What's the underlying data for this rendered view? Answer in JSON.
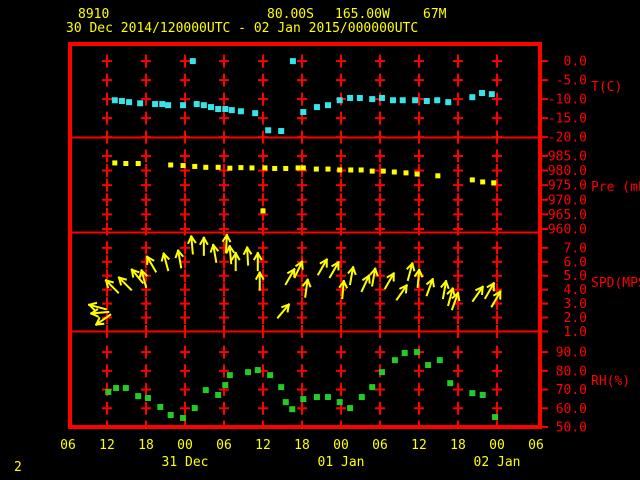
{
  "header": {
    "station_id": "8910",
    "latitude": "80.00S",
    "longitude": "165.00W",
    "elevation": "67M",
    "time_range": "30 Dec 2014/120000UTC - 02 Jan 2015/000000UTC"
  },
  "footer": {
    "page_label": "2"
  },
  "colors": {
    "background": "#000000",
    "grid": "#ff0000",
    "axis_text": "#ff0000",
    "header_text": "#ffff00",
    "temperature": "#35e3e8",
    "pressure": "#ffff00",
    "wind": "#ffff00",
    "humidity": "#22cc22"
  },
  "x_axis": {
    "hours_span": 72,
    "grid_interval_hours": 6,
    "hour_tick_labels": [
      "06",
      "12",
      "18",
      "00",
      "06",
      "12",
      "18",
      "00",
      "06",
      "12",
      "18",
      "00",
      "06"
    ],
    "date_labels": [
      {
        "label": "31 Dec",
        "hour": 18
      },
      {
        "label": "01 Jan",
        "hour": 42
      },
      {
        "label": "02 Jan",
        "hour": 66
      }
    ]
  },
  "chart_data": [
    {
      "type": "scatter",
      "name": "temperature",
      "ylabel": "T(C)",
      "yticks": [
        0.0,
        -5.0,
        -10.0,
        -15.0,
        -20.0
      ],
      "ylim": [
        -20.1,
        4.5
      ],
      "points": [
        [
          7.2,
          -10.3
        ],
        [
          8.3,
          -10.5
        ],
        [
          9.4,
          -10.8
        ],
        [
          11.1,
          -11.1
        ],
        [
          13.4,
          -11.3
        ],
        [
          14.5,
          -11.3
        ],
        [
          15.4,
          -11.6
        ],
        [
          17.7,
          -11.6
        ],
        [
          19.2,
          0.0
        ],
        [
          19.8,
          -11.3
        ],
        [
          20.9,
          -11.6
        ],
        [
          22.0,
          -12.1
        ],
        [
          23.1,
          -12.6
        ],
        [
          24.2,
          -12.6
        ],
        [
          25.2,
          -12.9
        ],
        [
          26.6,
          -13.2
        ],
        [
          28.8,
          -13.7
        ],
        [
          30.8,
          -18.2
        ],
        [
          32.8,
          -18.4
        ],
        [
          34.6,
          0.0
        ],
        [
          36.2,
          -13.4
        ],
        [
          38.3,
          -12.1
        ],
        [
          40.0,
          -11.6
        ],
        [
          41.8,
          -10.3
        ],
        [
          43.4,
          -9.7
        ],
        [
          44.9,
          -9.7
        ],
        [
          46.8,
          -10.0
        ],
        [
          48.3,
          -9.7
        ],
        [
          50.0,
          -10.3
        ],
        [
          51.5,
          -10.3
        ],
        [
          53.4,
          -10.3
        ],
        [
          55.2,
          -10.5
        ],
        [
          56.8,
          -10.3
        ],
        [
          58.5,
          -10.8
        ],
        [
          62.2,
          -9.5
        ],
        [
          63.7,
          -8.4
        ],
        [
          65.2,
          -8.7
        ]
      ]
    },
    {
      "type": "scatter",
      "name": "pressure",
      "ylabel": "Pre (mb)",
      "yticks": [
        985.0,
        980.0,
        975.0,
        970.0,
        965.0,
        960.0
      ],
      "ylim": [
        958.8,
        991.3
      ],
      "points": [
        [
          7.2,
          982.6
        ],
        [
          8.9,
          982.4
        ],
        [
          10.8,
          982.4
        ],
        [
          15.8,
          981.9
        ],
        [
          17.7,
          981.7
        ],
        [
          19.5,
          981.4
        ],
        [
          21.2,
          981.1
        ],
        [
          23.1,
          981.1
        ],
        [
          24.9,
          980.8
        ],
        [
          26.6,
          981.0
        ],
        [
          28.3,
          980.9
        ],
        [
          30.0,
          966.2
        ],
        [
          30.3,
          980.9
        ],
        [
          31.8,
          980.7
        ],
        [
          33.5,
          980.7
        ],
        [
          35.4,
          980.9
        ],
        [
          36.2,
          980.9
        ],
        [
          38.2,
          980.5
        ],
        [
          40.0,
          980.5
        ],
        [
          41.8,
          980.2
        ],
        [
          43.5,
          980.2
        ],
        [
          45.1,
          980.2
        ],
        [
          46.8,
          979.8
        ],
        [
          48.5,
          979.8
        ],
        [
          50.2,
          979.5
        ],
        [
          52.0,
          979.2
        ],
        [
          53.7,
          978.8
        ],
        [
          56.9,
          978.2
        ],
        [
          62.2,
          976.8
        ],
        [
          63.8,
          976.1
        ],
        [
          65.5,
          975.8
        ]
      ]
    },
    {
      "type": "wind-arrows",
      "name": "wind_speed",
      "ylabel": "SPD(MPS)",
      "yticks": [
        7.0,
        6.0,
        5.0,
        4.0,
        3.0,
        2.0,
        1.0
      ],
      "ylim": [
        1.0,
        8.1
      ],
      "points": [
        [
          5.8,
          2.6,
          -75
        ],
        [
          6.2,
          2.4,
          -95
        ],
        [
          6.5,
          2.2,
          -125
        ],
        [
          7.7,
          3.8,
          -45
        ],
        [
          9.7,
          4.0,
          -45
        ],
        [
          11.5,
          4.5,
          -40
        ],
        [
          12.0,
          4.2,
          -15
        ],
        [
          13.5,
          5.3,
          -30
        ],
        [
          15.4,
          5.4,
          -15
        ],
        [
          17.4,
          5.6,
          -10
        ],
        [
          19.2,
          6.6,
          -5
        ],
        [
          20.9,
          6.5,
          0
        ],
        [
          22.8,
          6.0,
          -10
        ],
        [
          24.3,
          6.7,
          3
        ],
        [
          25.1,
          5.9,
          -5
        ],
        [
          25.8,
          5.4,
          0
        ],
        [
          27.7,
          5.8,
          -3
        ],
        [
          29.2,
          5.4,
          0
        ],
        [
          29.5,
          4.0,
          0
        ],
        [
          32.3,
          2.0,
          40
        ],
        [
          33.5,
          4.4,
          30
        ],
        [
          34.9,
          4.9,
          25
        ],
        [
          36.5,
          3.5,
          8
        ],
        [
          38.5,
          5.1,
          30
        ],
        [
          40.3,
          4.9,
          30
        ],
        [
          42.2,
          3.4,
          5
        ],
        [
          43.4,
          4.4,
          10
        ],
        [
          45.2,
          3.9,
          25
        ],
        [
          46.8,
          4.3,
          10
        ],
        [
          48.8,
          4.1,
          30
        ],
        [
          50.6,
          3.3,
          35
        ],
        [
          52.3,
          4.7,
          15
        ],
        [
          53.8,
          4.2,
          5
        ],
        [
          55.2,
          3.6,
          20
        ],
        [
          57.7,
          3.4,
          10
        ],
        [
          58.5,
          2.9,
          15
        ],
        [
          59.1,
          2.6,
          20
        ],
        [
          62.3,
          3.2,
          35
        ],
        [
          64.2,
          3.4,
          30
        ],
        [
          65.2,
          2.8,
          30
        ]
      ]
    },
    {
      "type": "scatter",
      "name": "relative_humidity",
      "ylabel": "RH(%)",
      "yticks": [
        90.0,
        80.0,
        70.0,
        60.0,
        50.0
      ],
      "ylim": [
        50.0,
        101.0
      ],
      "points": [
        [
          6.2,
          68.7
        ],
        [
          7.4,
          70.8
        ],
        [
          8.9,
          70.8
        ],
        [
          10.8,
          66.5
        ],
        [
          12.3,
          65.5
        ],
        [
          14.2,
          60.7
        ],
        [
          15.8,
          56.4
        ],
        [
          17.7,
          54.8
        ],
        [
          19.5,
          60.1
        ],
        [
          21.2,
          69.7
        ],
        [
          23.1,
          67.1
        ],
        [
          24.2,
          72.4
        ],
        [
          24.9,
          77.7
        ],
        [
          27.7,
          79.3
        ],
        [
          29.2,
          80.4
        ],
        [
          31.1,
          77.7
        ],
        [
          32.8,
          71.3
        ],
        [
          33.5,
          63.3
        ],
        [
          34.5,
          59.5
        ],
        [
          36.2,
          64.9
        ],
        [
          38.3,
          66.0
        ],
        [
          40.0,
          66.0
        ],
        [
          41.8,
          63.3
        ],
        [
          43.4,
          60.1
        ],
        [
          45.2,
          66.0
        ],
        [
          46.8,
          71.3
        ],
        [
          48.3,
          79.3
        ],
        [
          50.3,
          85.7
        ],
        [
          51.8,
          89.5
        ],
        [
          53.7,
          90.0
        ],
        [
          55.4,
          83.1
        ],
        [
          57.2,
          85.7
        ],
        [
          58.8,
          73.4
        ],
        [
          62.2,
          68.1
        ],
        [
          63.8,
          67.1
        ],
        [
          65.7,
          55.3
        ]
      ]
    }
  ]
}
